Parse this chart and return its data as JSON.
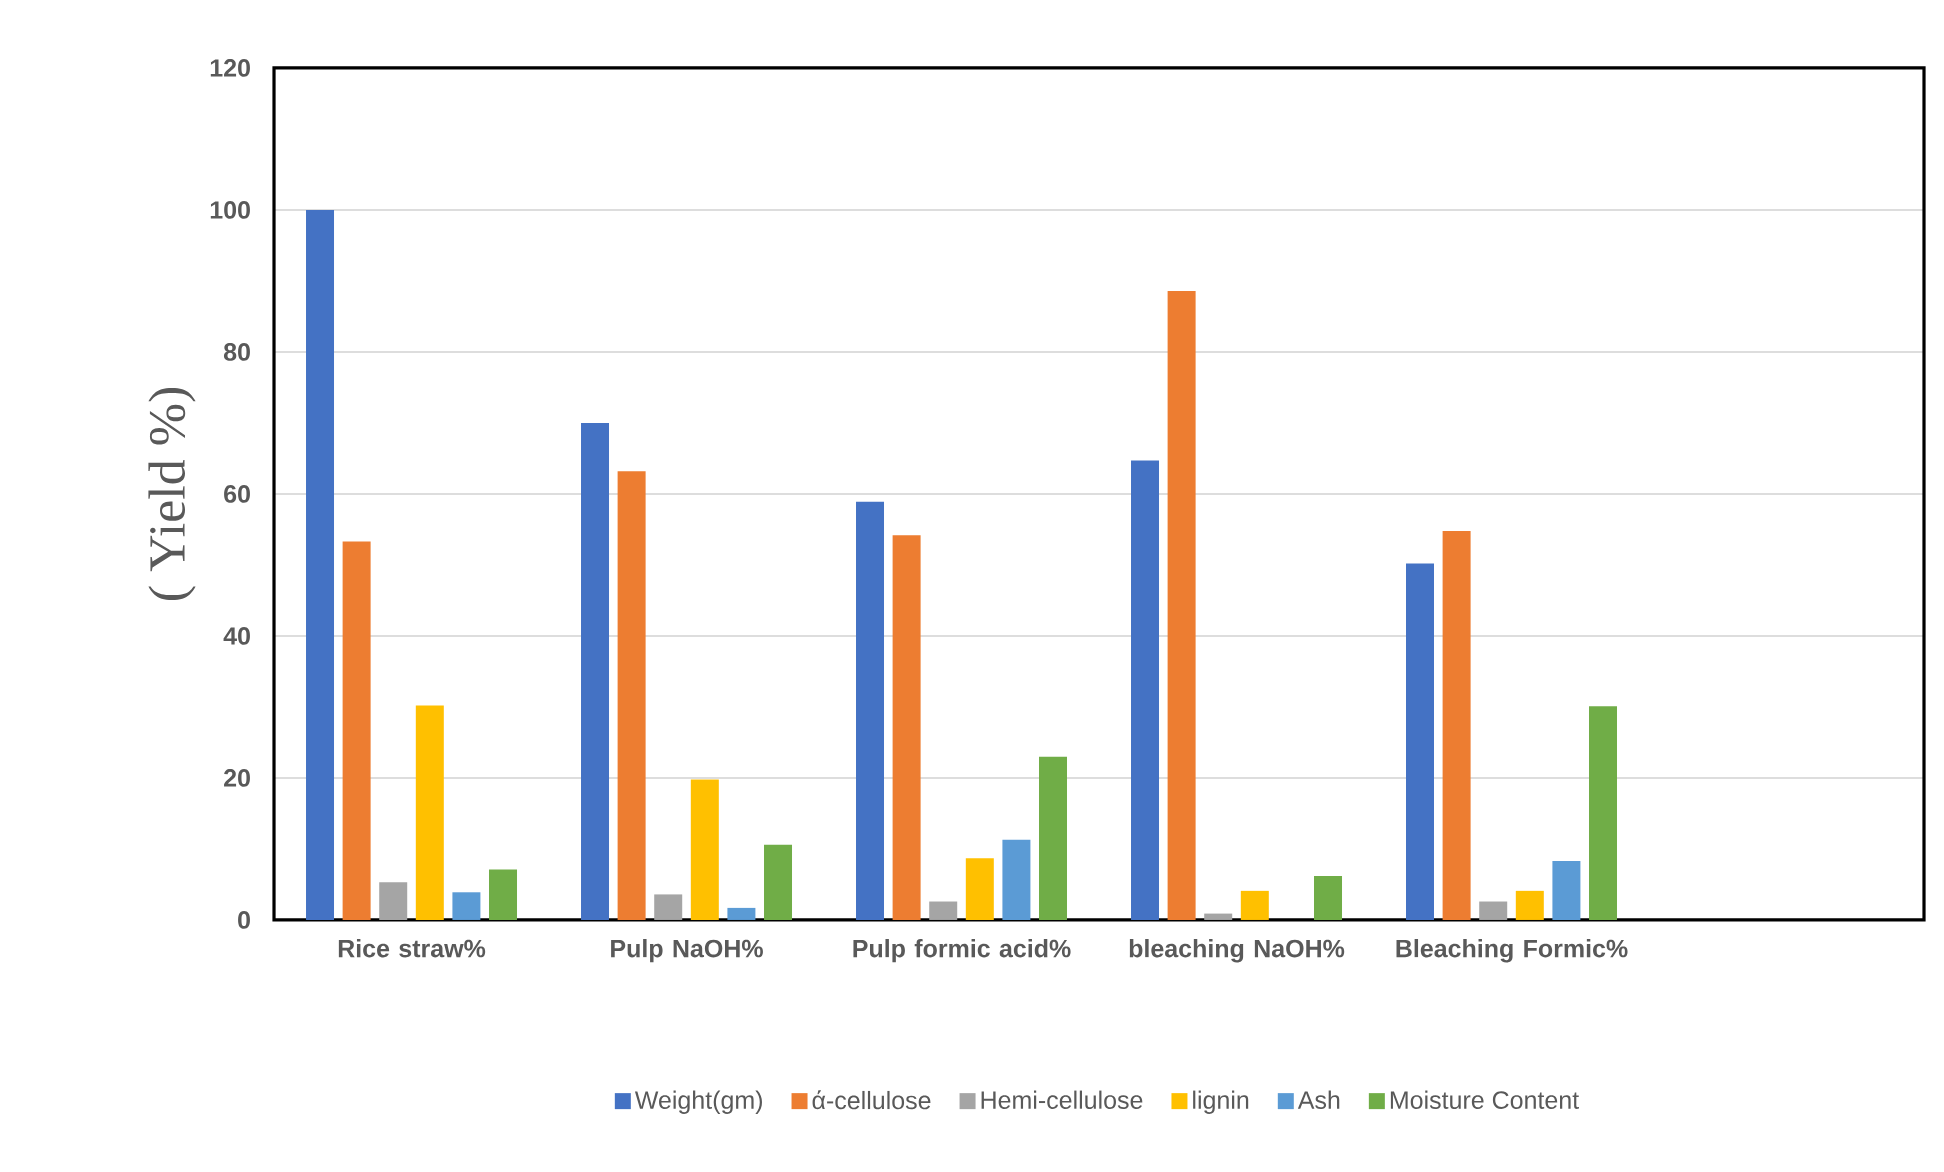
{
  "chart_data": {
    "type": "bar",
    "ylabel": "( Yield %)",
    "categories": [
      "Rice straw%",
      "Pulp NaOH%",
      "Pulp formic acid%",
      "bleaching NaOH%",
      "Bleaching Formic%",
      null
    ],
    "series": [
      {
        "name": "Weight(gm)",
        "color": "#4472c4",
        "values": [
          100,
          70.0,
          58.9,
          64.7,
          50.2,
          null
        ]
      },
      {
        "name": "ά-cellulose",
        "color": "#ed7d31",
        "values": [
          53.3,
          63.2,
          54.2,
          88.6,
          54.8,
          null
        ]
      },
      {
        "name": "Hemi-cellulose",
        "color": "#a5a5a5",
        "values": [
          5.3,
          3.6,
          2.6,
          0.9,
          2.6,
          null
        ]
      },
      {
        "name": "lignin",
        "color": "#ffc000",
        "values": [
          30.2,
          19.8,
          8.7,
          4.1,
          4.1,
          null
        ]
      },
      {
        "name": "Ash",
        "color": "#5b9bd5",
        "values": [
          3.9,
          1.7,
          11.3,
          null,
          8.3,
          null
        ]
      },
      {
        "name": "Moisture Content",
        "color": "#70ad47",
        "values": [
          7.1,
          10.6,
          23.0,
          6.2,
          30.1,
          null
        ]
      }
    ],
    "ylim": [
      0,
      120
    ],
    "yticks": [
      0,
      20,
      40,
      60,
      80,
      100,
      120
    ],
    "grid": "y",
    "legend": "bottom"
  }
}
